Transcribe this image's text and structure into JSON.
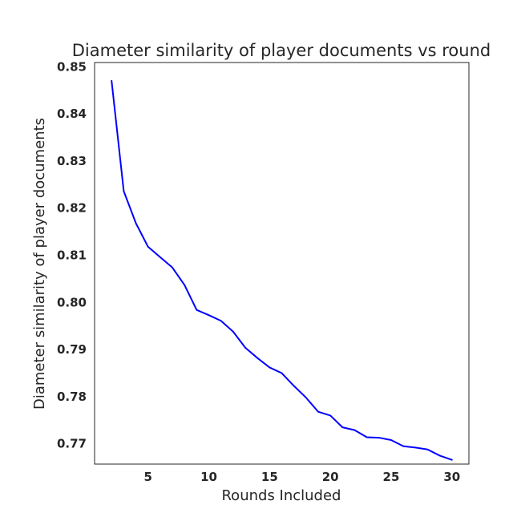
{
  "chart_data": {
    "type": "line",
    "title": "Diameter similarity of player documents vs round",
    "xlabel": "Rounds Included",
    "ylabel": "Diameter similarity of player documents",
    "xlim": [
      0.6,
      31.4
    ],
    "ylim": [
      0.7657,
      0.8509
    ],
    "grid": false,
    "x_ticks": [
      5,
      10,
      15,
      20,
      25,
      30
    ],
    "x_tick_labels": [
      "5",
      "10",
      "15",
      "20",
      "25",
      "30"
    ],
    "y_ticks": [
      0.77,
      0.78,
      0.79,
      0.8,
      0.81,
      0.82,
      0.83,
      0.84,
      0.85
    ],
    "y_tick_labels": [
      "0.77",
      "0.78",
      "0.79",
      "0.80",
      "0.81",
      "0.82",
      "0.83",
      "0.84",
      "0.85"
    ],
    "series": [
      {
        "name": "diameter similarity",
        "color": "#0000ff",
        "x": [
          2,
          3,
          4,
          5,
          6,
          7,
          8,
          9,
          10,
          11,
          12,
          13,
          14,
          15,
          16,
          17,
          18,
          19,
          20,
          21,
          22,
          23,
          24,
          25,
          26,
          27,
          28,
          29,
          30
        ],
        "values": [
          0.847,
          0.8236,
          0.8168,
          0.8118,
          0.8096,
          0.8074,
          0.8037,
          0.7984,
          0.7973,
          0.7961,
          0.7938,
          0.7904,
          0.7882,
          0.7862,
          0.785,
          0.7823,
          0.7798,
          0.7768,
          0.776,
          0.7735,
          0.7729,
          0.7714,
          0.7713,
          0.7708,
          0.7695,
          0.7692,
          0.7688,
          0.7675,
          0.7666
        ]
      }
    ]
  }
}
